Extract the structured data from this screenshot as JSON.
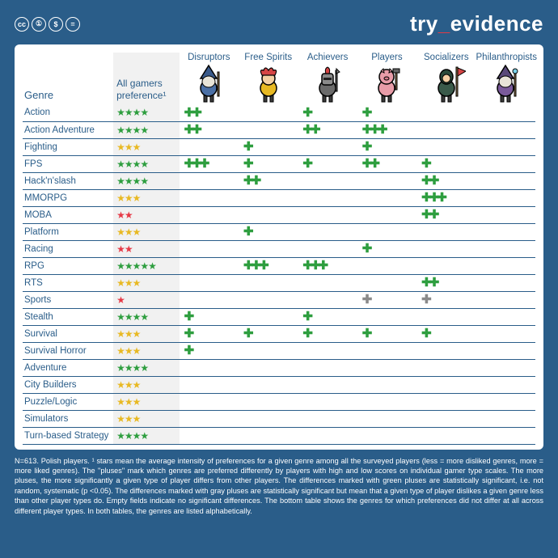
{
  "colors": {
    "page_bg": "#2a5d89",
    "card_bg": "#ffffff",
    "pref_col_bg": "#f1f1f1",
    "text": "#2a5d89",
    "row_border": "#2a5d89",
    "star_green": "#2e9e3f",
    "star_yellow": "#e8b923",
    "star_red": "#e63946",
    "plus_green": "#2e9e3f",
    "plus_gray": "#8a8a8a",
    "logo_accent": "#e63946"
  },
  "topbar": {
    "cc": [
      "cc",
      "①",
      "$",
      "="
    ],
    "logo_pre": "try",
    "logo_sep": "_",
    "logo_post": "evidence"
  },
  "table": {
    "genre_header": "Genre",
    "pref_header": "All gamers preference¹",
    "types": [
      {
        "label": "Disruptors",
        "avatar": "wizard"
      },
      {
        "label": "Free Spirits",
        "avatar": "jester"
      },
      {
        "label": "Achievers",
        "avatar": "knight"
      },
      {
        "label": "Players",
        "avatar": "pig"
      },
      {
        "label": "Socializers",
        "avatar": "flagbearer"
      },
      {
        "label": "Philanthropists",
        "avatar": "mage"
      }
    ],
    "rows": [
      {
        "genre": "Action",
        "stars": {
          "count": 4,
          "color": "green"
        },
        "cells": [
          {
            "n": 2,
            "c": "green"
          },
          null,
          {
            "n": 1,
            "c": "green"
          },
          {
            "n": 1,
            "c": "green"
          },
          null,
          null
        ]
      },
      {
        "genre": "Action Adventure",
        "stars": {
          "count": 4,
          "color": "green"
        },
        "cells": [
          {
            "n": 2,
            "c": "green"
          },
          null,
          {
            "n": 2,
            "c": "green"
          },
          {
            "n": 3,
            "c": "green"
          },
          null,
          null
        ]
      },
      {
        "genre": "Fighting",
        "stars": {
          "count": 3,
          "color": "yellow"
        },
        "cells": [
          null,
          {
            "n": 1,
            "c": "green"
          },
          null,
          {
            "n": 1,
            "c": "green"
          },
          null,
          null
        ]
      },
      {
        "genre": "FPS",
        "stars": {
          "count": 4,
          "color": "green"
        },
        "cells": [
          {
            "n": 3,
            "c": "green"
          },
          {
            "n": 1,
            "c": "green"
          },
          {
            "n": 1,
            "c": "green"
          },
          {
            "n": 2,
            "c": "green"
          },
          {
            "n": 1,
            "c": "green"
          },
          null
        ]
      },
      {
        "genre": "Hack'n'slash",
        "stars": {
          "count": 4,
          "color": "green"
        },
        "cells": [
          null,
          {
            "n": 2,
            "c": "green"
          },
          null,
          null,
          {
            "n": 2,
            "c": "green"
          },
          null
        ]
      },
      {
        "genre": "MMORPG",
        "stars": {
          "count": 3,
          "color": "yellow"
        },
        "cells": [
          null,
          null,
          null,
          null,
          {
            "n": 3,
            "c": "green"
          },
          null
        ]
      },
      {
        "genre": "MOBA",
        "stars": {
          "count": 2,
          "color": "red"
        },
        "cells": [
          null,
          null,
          null,
          null,
          {
            "n": 2,
            "c": "green"
          },
          null
        ]
      },
      {
        "genre": "Platform",
        "stars": {
          "count": 3,
          "color": "yellow"
        },
        "cells": [
          null,
          {
            "n": 1,
            "c": "green"
          },
          null,
          null,
          null,
          null
        ]
      },
      {
        "genre": "Racing",
        "stars": {
          "count": 2,
          "color": "red"
        },
        "cells": [
          null,
          null,
          null,
          {
            "n": 1,
            "c": "green"
          },
          null,
          null
        ]
      },
      {
        "genre": "RPG",
        "stars": {
          "count": 5,
          "color": "green"
        },
        "cells": [
          null,
          {
            "n": 3,
            "c": "green"
          },
          {
            "n": 3,
            "c": "green"
          },
          null,
          null,
          null
        ]
      },
      {
        "genre": "RTS",
        "stars": {
          "count": 3,
          "color": "yellow"
        },
        "cells": [
          null,
          null,
          null,
          null,
          {
            "n": 2,
            "c": "green"
          },
          null
        ]
      },
      {
        "genre": "Sports",
        "stars": {
          "count": 1,
          "color": "red"
        },
        "cells": [
          null,
          null,
          null,
          {
            "n": 1,
            "c": "gray"
          },
          {
            "n": 1,
            "c": "gray"
          },
          null
        ]
      },
      {
        "genre": "Stealth",
        "stars": {
          "count": 4,
          "color": "green"
        },
        "cells": [
          {
            "n": 1,
            "c": "green"
          },
          null,
          {
            "n": 1,
            "c": "green"
          },
          null,
          null,
          null
        ]
      },
      {
        "genre": "Survival",
        "stars": {
          "count": 3,
          "color": "yellow"
        },
        "cells": [
          {
            "n": 1,
            "c": "green"
          },
          {
            "n": 1,
            "c": "green"
          },
          {
            "n": 1,
            "c": "green"
          },
          {
            "n": 1,
            "c": "green"
          },
          {
            "n": 1,
            "c": "green"
          },
          null
        ]
      },
      {
        "genre": "Survival Horror",
        "stars": {
          "count": 3,
          "color": "yellow"
        },
        "cells": [
          {
            "n": 1,
            "c": "green"
          },
          null,
          null,
          null,
          null,
          null
        ]
      },
      {
        "genre": "Adventure",
        "stars": {
          "count": 4,
          "color": "green"
        },
        "cells": [
          null,
          null,
          null,
          null,
          null,
          null
        ]
      },
      {
        "genre": "City Builders",
        "stars": {
          "count": 3,
          "color": "yellow"
        },
        "cells": [
          null,
          null,
          null,
          null,
          null,
          null
        ]
      },
      {
        "genre": "Puzzle/Logic",
        "stars": {
          "count": 3,
          "color": "yellow"
        },
        "cells": [
          null,
          null,
          null,
          null,
          null,
          null
        ]
      },
      {
        "genre": "Simulators",
        "stars": {
          "count": 3,
          "color": "yellow"
        },
        "cells": [
          null,
          null,
          null,
          null,
          null,
          null
        ]
      },
      {
        "genre": "Turn-based Strategy",
        "stars": {
          "count": 4,
          "color": "green"
        },
        "cells": [
          null,
          null,
          null,
          null,
          null,
          null
        ]
      }
    ]
  },
  "footnote": "N=613. Polish players. ¹ stars mean the average intensity of preferences for a given genre among all the surveyed players (less = more disliked genres, more = more liked genres). The \"pluses\" mark which genres are preferred differently by players with high and low scores on individual gamer type scales. The more pluses, the more significantly a given type of player differs from other players. The differences marked with green pluses are statistically significant, i.e. not random, systematic (p <0.05). The differences marked with gray pluses are statistically significant but mean that a given type of player dislikes a given genre less than other player types do. Empty fields indicate no significant differences. The bottom table shows the genres for which preferences did not differ at all across different player types. In both tables, the genres are listed alphabetically.",
  "avatars": {
    "wizard": {
      "body": "#4a6fa5",
      "hat": "#3a5a8a",
      "beard": "#e8e4d8",
      "staff": "#8b6f47"
    },
    "jester": {
      "body": "#e8b923",
      "hat": "#d64545",
      "skin": "#f4d0a4"
    },
    "knight": {
      "body": "#6b6b6b",
      "helmet": "#8a8a8a",
      "plume": "#d64545"
    },
    "pig": {
      "body": "#e89ca8",
      "clothes": "#6b4a3a",
      "hammer": "#8b6f47"
    },
    "flagbearer": {
      "body": "#3a5a4a",
      "hood": "#2a4a3a",
      "flag": "#d64545",
      "pole": "#8b6f47"
    },
    "mage": {
      "body": "#7a5a9a",
      "hat": "#5a4a7a",
      "beard": "#e8e4d8",
      "staff": "#8b6f47"
    }
  }
}
